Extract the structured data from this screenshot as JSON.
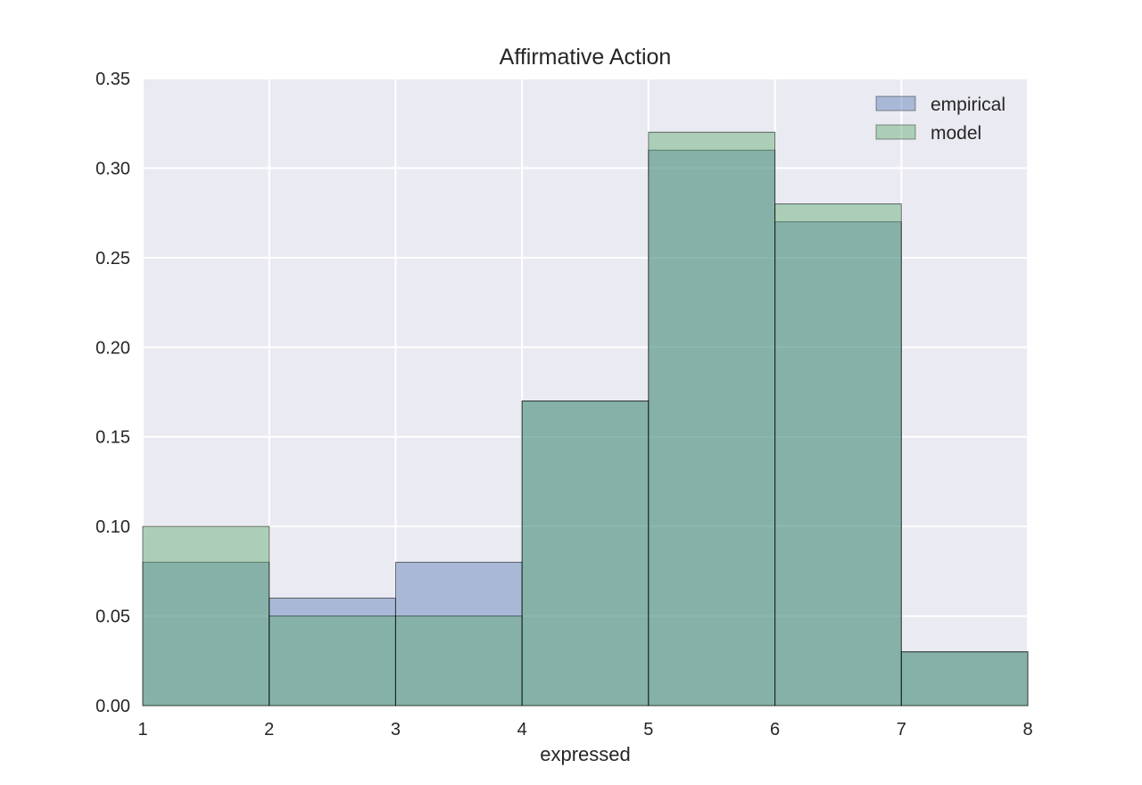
{
  "chart_data": {
    "type": "histogram",
    "title": "Affirmative Action",
    "x_label": "expressed",
    "bins": [
      1,
      2,
      3,
      4,
      5,
      6,
      7,
      8
    ],
    "series": [
      {
        "name": "empirical",
        "color": "#4c72b0",
        "values": [
          0.08,
          0.06,
          0.08,
          0.17,
          0.31,
          0.27,
          0.03
        ]
      },
      {
        "name": "model",
        "color": "#55a868",
        "values": [
          0.1,
          0.05,
          0.05,
          0.17,
          0.32,
          0.28,
          0.03
        ]
      }
    ],
    "xlim": [
      1,
      8
    ],
    "xticks": [
      1,
      2,
      3,
      4,
      5,
      6,
      7,
      8
    ],
    "ylim": [
      0,
      0.35
    ],
    "yticks": [
      {
        "value": 0,
        "label": "0.00"
      },
      0.05,
      {
        "value": 0.1,
        "label": "0.10"
      },
      0.15,
      {
        "value": 0.2,
        "label": "0.20"
      },
      0.25,
      {
        "value": 0.3,
        "label": "0.30"
      },
      0.35
    ],
    "grid": true,
    "legend": "upper right"
  }
}
